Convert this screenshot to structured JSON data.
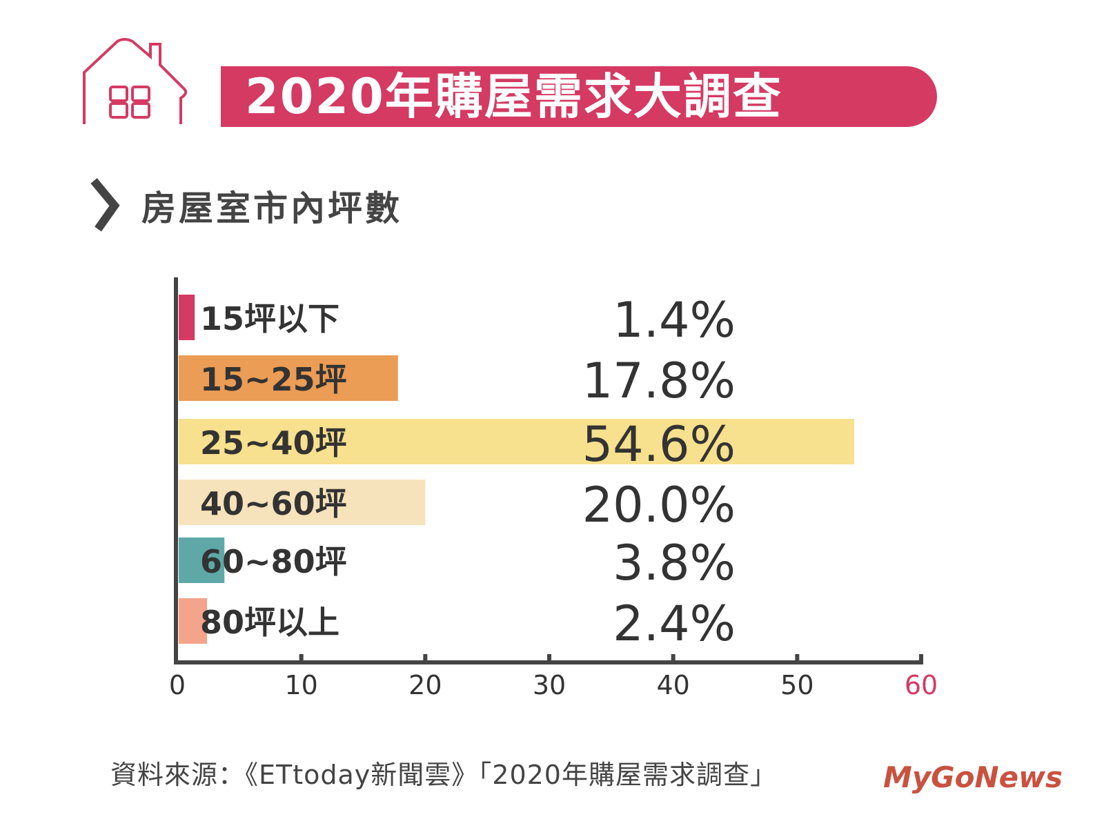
{
  "header": {
    "title": "2020年購屋需求大調查",
    "icon": "house-icon"
  },
  "section": {
    "title": "房屋室市內坪數",
    "icon": "chevron-right-icon"
  },
  "chart_data": {
    "type": "bar",
    "orientation": "horizontal",
    "title": "房屋室市內坪數",
    "categories": [
      "15坪以下",
      "15~25坪",
      "25~40坪",
      "40~60坪",
      "60~80坪",
      "80坪以上"
    ],
    "values": [
      1.4,
      17.8,
      54.6,
      20.0,
      3.8,
      2.4
    ],
    "value_labels": [
      "1.4%",
      "17.8%",
      "54.6%",
      "20.0%",
      "3.8%",
      "2.4%"
    ],
    "colors": [
      "#d43a62",
      "#eb9c55",
      "#f7e08e",
      "#f6e2bb",
      "#5fa8a8",
      "#f4a48a"
    ],
    "xlim": [
      0,
      60
    ],
    "xticks": [
      "0",
      "10",
      "20",
      "30",
      "40",
      "50",
      "60"
    ],
    "xlabel": "",
    "ylabel": "",
    "grid": false,
    "legend": "none"
  },
  "footer": {
    "source": "資料來源：《ETtoday新聞雲》「2020年購屋需求調查」",
    "watermark": "MyGoNews"
  }
}
